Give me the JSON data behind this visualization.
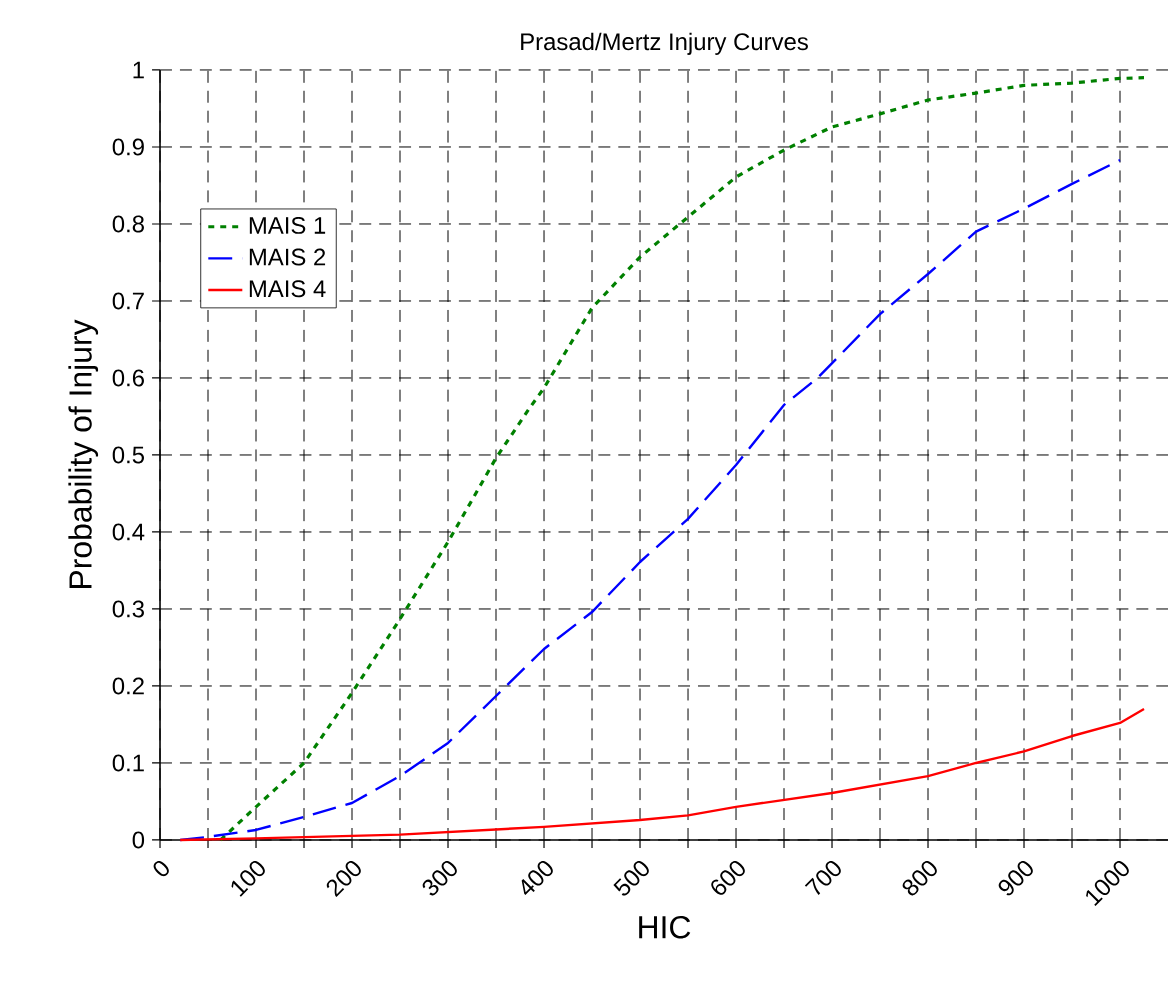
{
  "chart_data": {
    "type": "line",
    "title": "Prasad/Mertz Injury Curves",
    "xlabel": "HIC",
    "ylabel": "Probability of Injury",
    "series": [
      {
        "name": "MAIS 1",
        "color": "#008000",
        "line_style": "dotted",
        "x": [
          63,
          100,
          150,
          200,
          250,
          300,
          350,
          385,
          400,
          450,
          500,
          550,
          600,
          650,
          700,
          750,
          800,
          850,
          900,
          950,
          1000,
          1025
        ],
        "values": [
          0,
          0.043,
          0.1,
          0.191,
          0.287,
          0.387,
          0.496,
          0.561,
          0.587,
          0.691,
          0.757,
          0.809,
          0.861,
          0.896,
          0.926,
          0.943,
          0.961,
          0.97,
          0.98,
          0.983,
          0.989,
          0.99
        ]
      },
      {
        "name": "MAIS 2",
        "color": "#0000ff",
        "line_style": "dashed",
        "x": [
          21,
          50,
          100,
          150,
          200,
          250,
          300,
          350,
          400,
          450,
          500,
          550,
          600,
          650,
          685,
          750,
          800,
          850,
          900,
          950,
          1000
        ],
        "values": [
          0,
          0.004,
          0.013,
          0.03,
          0.048,
          0.083,
          0.126,
          0.187,
          0.248,
          0.296,
          0.361,
          0.417,
          0.487,
          0.565,
          0.6,
          0.683,
          0.735,
          0.79,
          0.82,
          0.852,
          0.883
        ]
      },
      {
        "name": "MAIS 4",
        "color": "#ff0000",
        "line_style": "solid",
        "x": [
          21,
          100,
          250,
          400,
          500,
          550,
          600,
          700,
          750,
          800,
          850,
          900,
          950,
          1000,
          1025
        ],
        "values": [
          0,
          0.002,
          0.007,
          0.017,
          0.026,
          0.032,
          0.043,
          0.061,
          0.072,
          0.083,
          0.1,
          0.115,
          0.135,
          0.152,
          0.17
        ]
      }
    ],
    "xlim": [
      0,
      1050
    ],
    "ylim": [
      0,
      1
    ],
    "xticks": [
      0,
      {
        "value": 50,
        "label": null
      },
      100,
      {
        "value": 150,
        "label": null
      },
      200,
      {
        "value": 250,
        "label": null
      },
      300,
      {
        "value": 350,
        "label": null
      },
      400,
      {
        "value": 450,
        "label": null
      },
      500,
      {
        "value": 550,
        "label": null
      },
      600,
      {
        "value": 650,
        "label": null
      },
      700,
      {
        "value": 750,
        "label": null
      },
      800,
      {
        "value": 850,
        "label": null
      },
      900,
      {
        "value": 950,
        "label": null
      },
      1000
    ],
    "yticks": [
      0,
      0.1,
      0.2,
      0.3,
      0.4,
      0.5,
      0.6,
      0.7,
      0.8,
      0.9,
      1
    ],
    "grid": true,
    "legend": "top left",
    "marker": "none"
  }
}
